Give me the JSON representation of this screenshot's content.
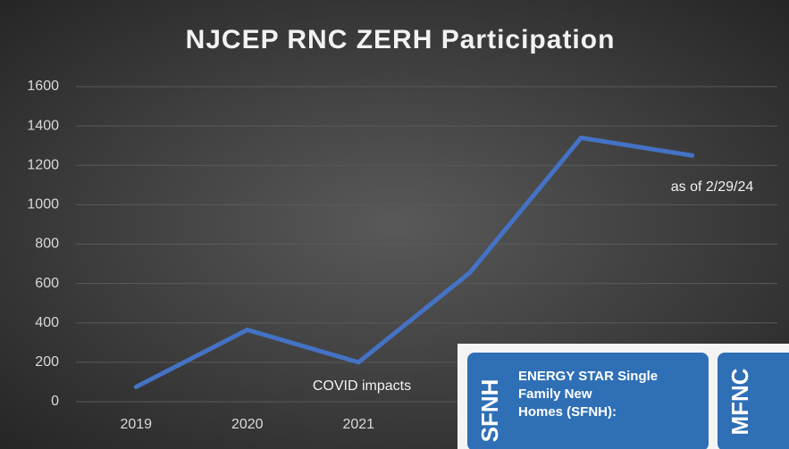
{
  "chart_data": {
    "type": "line",
    "title": "NJCEP RNC ZERH Participation",
    "categories": [
      "2019",
      "2020",
      "2021",
      null,
      null,
      null
    ],
    "series": [
      {
        "name": "Participation",
        "color": "#4472c4",
        "values": [
          75,
          365,
          200,
          655,
          1340,
          1250
        ]
      }
    ],
    "ylim": [
      0,
      1600
    ],
    "yticks": [
      0,
      200,
      400,
      600,
      800,
      1000,
      1200,
      1400,
      1600
    ],
    "grid": true,
    "annotations": [
      "COVID impacts",
      "as of 2/29/24"
    ]
  },
  "overlay": {
    "cards": [
      {
        "tag": "SFNH",
        "text": [
          "ENERGY STAR Single",
          "Family New",
          "Homes (SFNH):"
        ]
      },
      {
        "tag": "MFNC"
      }
    ]
  }
}
